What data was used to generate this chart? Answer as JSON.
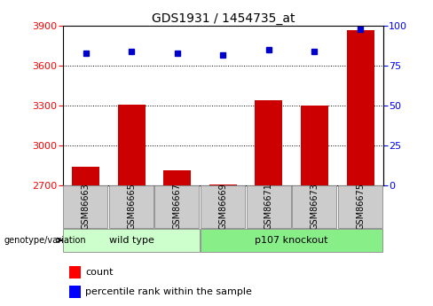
{
  "title": "GDS1931 / 1454735_at",
  "categories": [
    "GSM86663",
    "GSM86665",
    "GSM86667",
    "GSM86669",
    "GSM86671",
    "GSM86673",
    "GSM86675"
  ],
  "counts": [
    2840,
    3310,
    2810,
    2706,
    3340,
    3300,
    3870
  ],
  "percentiles": [
    83,
    84,
    83,
    82,
    85,
    84,
    98
  ],
  "ylim_left": [
    2700,
    3900
  ],
  "ylim_right": [
    0,
    100
  ],
  "yticks_left": [
    2700,
    3000,
    3300,
    3600,
    3900
  ],
  "yticks_right": [
    0,
    25,
    50,
    75,
    100
  ],
  "bar_color": "#cc0000",
  "dot_color": "#0000cc",
  "bar_width": 0.6,
  "wt_color": "#ccffcc",
  "ko_color": "#88ee88",
  "cat_bg_color": "#cccccc",
  "group_label": "genotype/variation",
  "legend_count_label": "count",
  "legend_percentile_label": "percentile rank within the sample",
  "bg_color": "#ffffff",
  "title_fontsize": 10,
  "tick_fontsize": 8,
  "label_fontsize": 7,
  "group_fontsize": 8,
  "legend_fontsize": 8
}
